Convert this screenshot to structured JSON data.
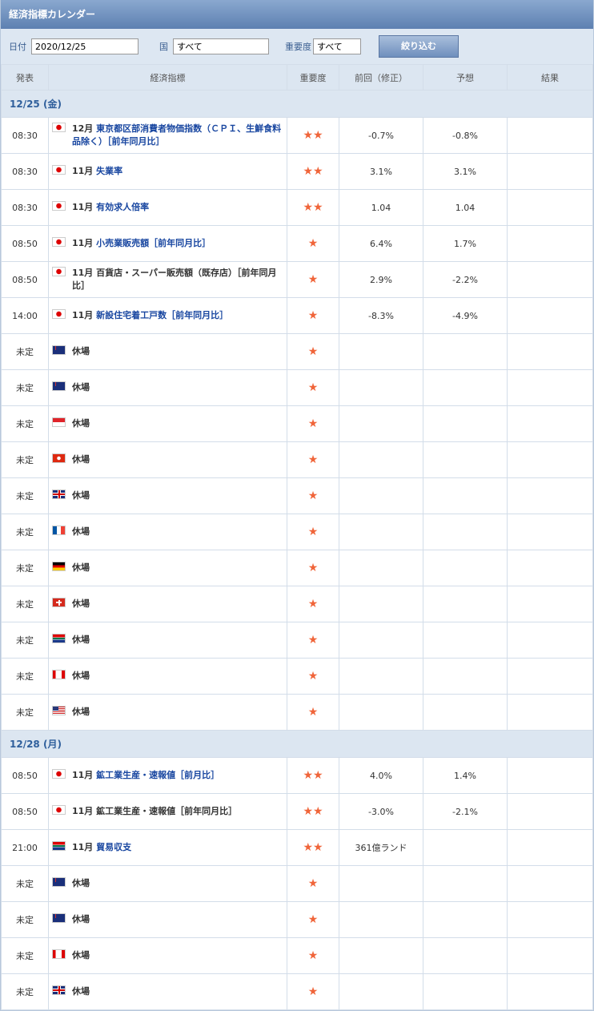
{
  "header": {
    "title": "経済指標カレンダー"
  },
  "filter": {
    "date_label": "日付",
    "date": "2020/12/25",
    "country_label": "国",
    "country": "すべて",
    "importance_label": "重要度",
    "importance": "すべて",
    "button": "絞り込む"
  },
  "columns": [
    "発表",
    "経済指標",
    "重要度",
    "前回（修正）",
    "予想",
    "結果"
  ],
  "sections": [
    {
      "date": "12/25 (金)",
      "rows": [
        {
          "time": "08:30",
          "month": "12月",
          "name": "東京都区部消費者物価指数（ＣＰＩ、生鮮食料品除く）［前年同月比］",
          "link": true,
          "importance": 2,
          "previous": "-0.7%",
          "forecast": "-0.8%"
        },
        {
          "time": "08:30",
          "month": "11月",
          "name": "失業率",
          "link": true,
          "importance": 2,
          "previous": "3.1%",
          "forecast": "3.1%"
        },
        {
          "time": "08:30",
          "month": "11月",
          "name": "有効求人倍率",
          "link": true,
          "importance": 2,
          "previous": "1.04",
          "forecast": "1.04"
        },
        {
          "time": "08:50",
          "month": "11月",
          "name": "小売業販売額［前年同月比］",
          "link": true,
          "importance": 1,
          "previous": "6.4%",
          "forecast": "1.7%"
        },
        {
          "time": "08:50",
          "month": "11月",
          "name": "百貨店・スーパー販売額（既存店）［前年同月比］",
          "link": false,
          "importance": 1,
          "previous": "2.9%",
          "forecast": "-2.2%"
        },
        {
          "time": "14:00",
          "month": "11月",
          "name": "新設住宅着工戸数［前年同月比］",
          "link": true,
          "importance": 1,
          "previous": "-8.3%",
          "forecast": "-4.9%"
        },
        {
          "time": "未定",
          "name": "休場",
          "link": false,
          "importance": 1
        },
        {
          "time": "未定",
          "name": "休場",
          "link": false,
          "importance": 1
        },
        {
          "time": "未定",
          "name": "休場",
          "link": false,
          "importance": 1
        },
        {
          "time": "未定",
          "name": "休場",
          "link": false,
          "importance": 1
        },
        {
          "time": "未定",
          "name": "休場",
          "link": false,
          "importance": 1
        },
        {
          "time": "未定",
          "name": "休場",
          "link": false,
          "importance": 1
        },
        {
          "time": "未定",
          "name": "休場",
          "link": false,
          "importance": 1
        },
        {
          "time": "未定",
          "name": "休場",
          "link": false,
          "importance": 1
        },
        {
          "time": "未定",
          "name": "休場",
          "link": false,
          "importance": 1
        },
        {
          "time": "未定",
          "name": "休場",
          "link": false,
          "importance": 1
        },
        {
          "time": "未定",
          "name": "休場",
          "link": false,
          "importance": 1
        }
      ]
    },
    {
      "date": "12/28 (月)",
      "rows": [
        {
          "time": "08:50",
          "month": "11月",
          "name": "鉱工業生産・速報値［前月比］",
          "link": true,
          "importance": 2,
          "previous": "4.0%",
          "forecast": "1.4%"
        },
        {
          "time": "08:50",
          "month": "11月",
          "name": "鉱工業生産・速報値［前年同月比］",
          "link": false,
          "importance": 2,
          "previous": "-3.0%",
          "forecast": "-2.1%"
        },
        {
          "time": "21:00",
          "month": "11月",
          "name": "貿易収支",
          "link": true,
          "importance": 2,
          "previous": "361億ランド"
        },
        {
          "time": "未定",
          "name": "休場",
          "link": false,
          "importance": 1
        },
        {
          "time": "未定",
          "name": "休場",
          "link": false,
          "importance": 1
        },
        {
          "time": "未定",
          "name": "休場",
          "link": false,
          "importance": 1
        },
        {
          "time": "未定",
          "name": "休場",
          "link": false,
          "importance": 1
        }
      ]
    }
  ]
}
